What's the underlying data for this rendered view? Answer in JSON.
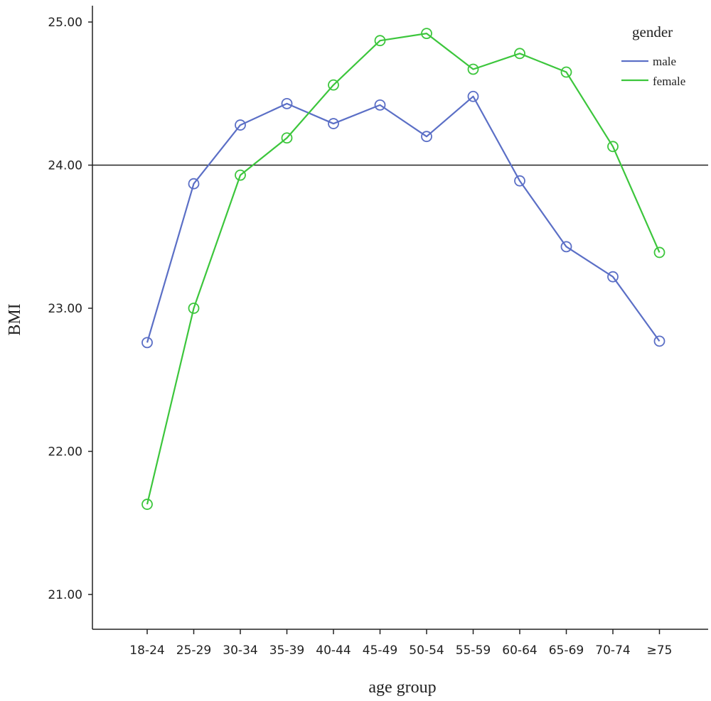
{
  "chart_data": {
    "type": "line",
    "xlabel": "age group",
    "ylabel": "BMI",
    "categories": [
      "18-24",
      "25-29",
      "30-34",
      "35-39",
      "40-44",
      "45-49",
      "50-54",
      "55-59",
      "60-64",
      "65-69",
      "70-74",
      "≥75"
    ],
    "ylim": [
      20.75,
      25.1
    ],
    "yticks": [
      "21.00",
      "22.00",
      "23.00",
      "24.00",
      "25.00"
    ],
    "reference_line": 24.0,
    "grid": false,
    "legend": {
      "title": "gender",
      "placement": "top-right"
    },
    "series": [
      {
        "name": "male",
        "color": "#5b6fc6",
        "values": [
          22.76,
          23.87,
          24.28,
          24.43,
          24.29,
          24.42,
          24.2,
          24.48,
          23.89,
          23.43,
          23.22,
          22.77
        ]
      },
      {
        "name": "female",
        "color": "#3cc63c",
        "values": [
          21.63,
          23.0,
          23.93,
          24.19,
          24.56,
          24.87,
          24.92,
          24.67,
          24.78,
          24.65,
          24.13,
          23.39
        ]
      }
    ]
  }
}
